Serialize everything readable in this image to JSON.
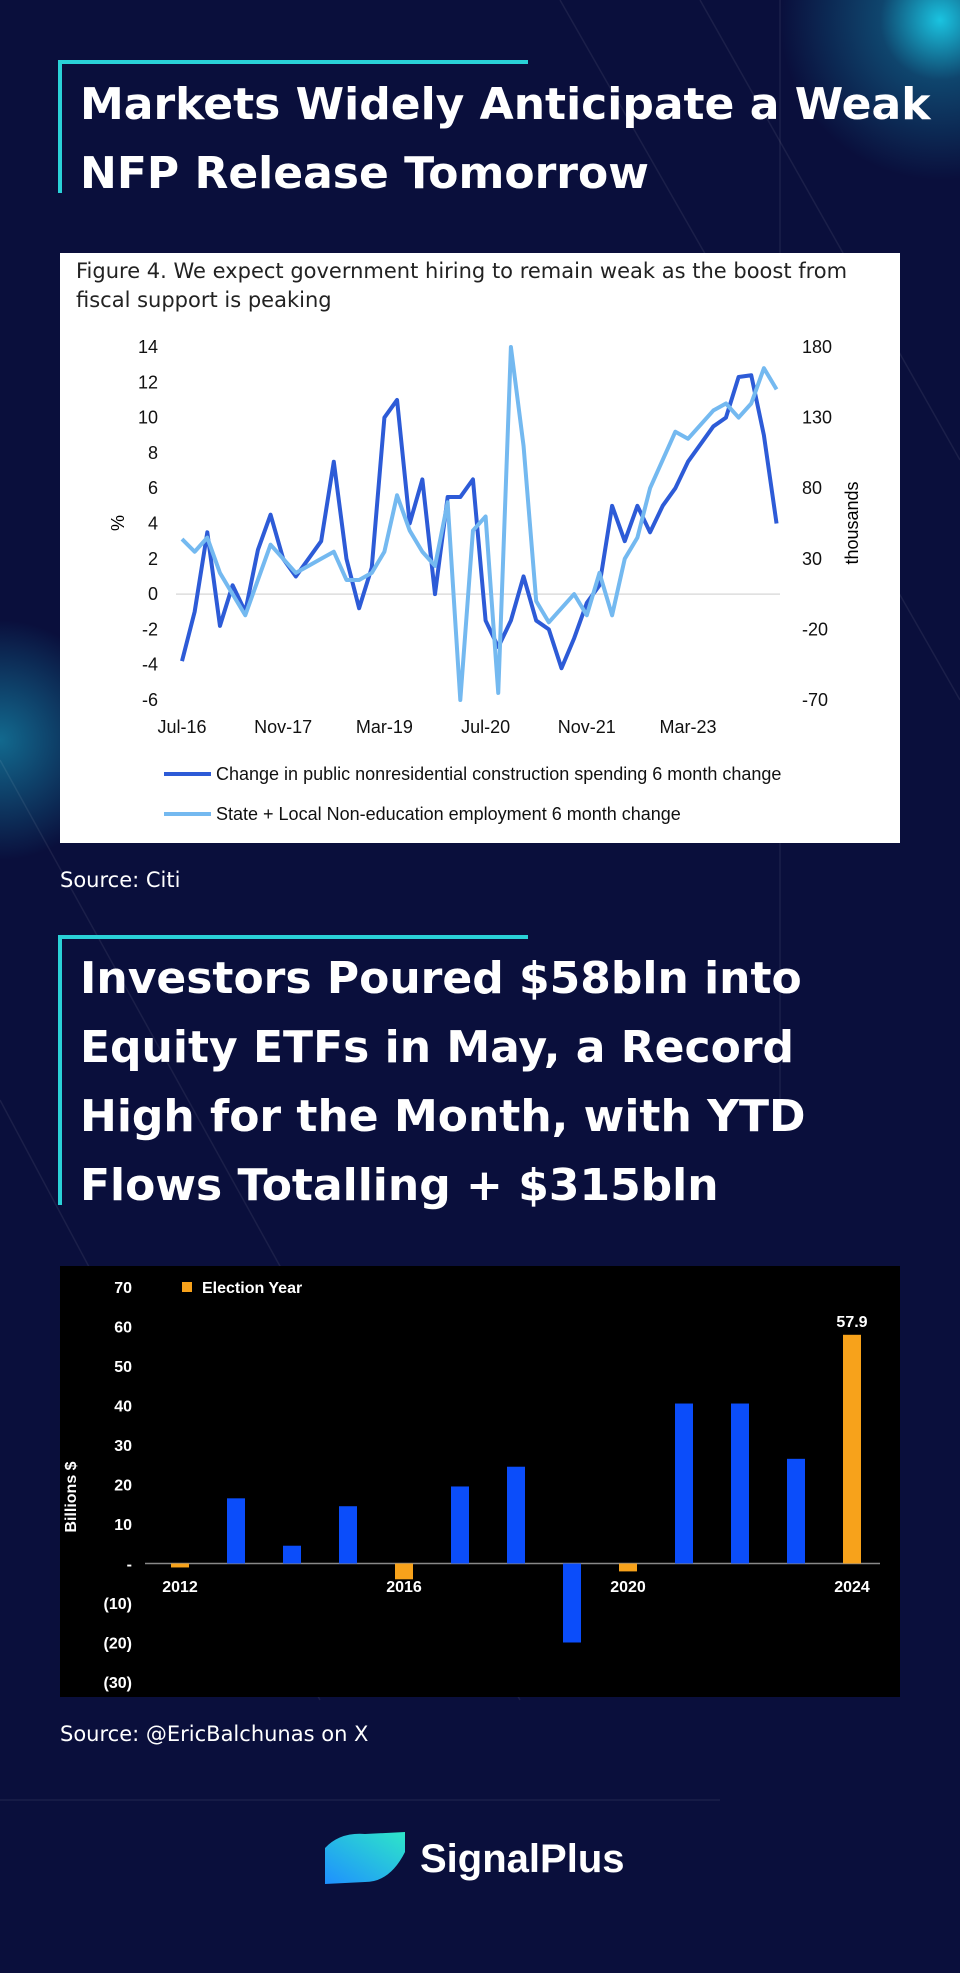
{
  "headings": [
    "Markets Widely Anticipate a Weak NFP Release Tomorrow",
    "Investors Poured $58bln into Equity ETFs in May, a Record High for the Month, with YTD Flows Totalling + $315bln"
  ],
  "sources": [
    "Source: Citi",
    "Source: @EricBalchunas on X"
  ],
  "brand": "SignalPlus",
  "chart_data": [
    {
      "type": "line",
      "title": "Figure 4. We expect government hiring to remain weak as the boost from fiscal support is peaking",
      "y_label": "%",
      "y2_label": "thousands",
      "categories": [
        "Jul-16",
        null,
        null,
        null,
        null,
        null,
        null,
        null,
        "Nov-17",
        null,
        null,
        null,
        null,
        null,
        null,
        null,
        "Mar-19",
        null,
        null,
        null,
        null,
        null,
        null,
        null,
        "Jul-20",
        null,
        null,
        null,
        null,
        null,
        null,
        null,
        "Nov-21",
        null,
        null,
        null,
        null,
        null,
        null,
        null,
        "Mar-23",
        null,
        null,
        null,
        null,
        null,
        null,
        null
      ],
      "ylim": [
        -6,
        14
      ],
      "yticks": [
        14,
        12,
        10,
        8,
        6,
        4,
        2,
        0,
        -2,
        -4,
        -6
      ],
      "y2lim": [
        -70,
        180
      ],
      "y2ticks": [
        180,
        130,
        80,
        30,
        -20,
        -70
      ],
      "series": [
        {
          "name": "Change in public nonresidential construction spending 6 month change",
          "color": "#2d5bd7",
          "values": [
            -3.8,
            -1,
            3.5,
            -1.8,
            0.5,
            -1,
            2.5,
            4.5,
            2,
            1,
            2,
            3,
            7.5,
            2,
            -0.8,
            1.5,
            10,
            11,
            4,
            6.5,
            0,
            5.5,
            5.5,
            6.5,
            -1.5,
            -3,
            -1.5,
            1,
            -1.5,
            -2,
            -4.2,
            -2.5,
            -0.5,
            0.5,
            5,
            3,
            5,
            3.5,
            5,
            6,
            7.5,
            8.5,
            9.5,
            10,
            12.3,
            12.4,
            9,
            4
          ]
        },
        {
          "name": "State + Local Non-education employment 6 month change",
          "color": "#74b9f0",
          "axis": "y2",
          "values": [
            44,
            35,
            45,
            20,
            5,
            -10,
            15,
            40,
            30,
            20,
            25,
            30,
            35,
            15,
            15,
            20,
            35,
            75,
            50,
            35,
            25,
            70,
            -70,
            50,
            60,
            -65,
            180,
            110,
            0,
            -15,
            -5,
            5,
            -10,
            20,
            -10,
            30,
            45,
            80,
            100,
            120,
            115,
            125,
            135,
            140,
            130,
            140,
            165,
            150
          ]
        }
      ]
    },
    {
      "type": "bar",
      "y_label": "Billions $",
      "categories": [
        "2012",
        null,
        null,
        null,
        "2016",
        null,
        null,
        null,
        "2020",
        null,
        null,
        null,
        "2024"
      ],
      "values": [
        -1,
        16.5,
        4.5,
        14.5,
        -4,
        19.5,
        24.5,
        -20,
        -2,
        40.5,
        40.5,
        26.5,
        57.9
      ],
      "colors": [
        "#f7a21b",
        "#0b4dfa",
        "#0b4dfa",
        "#0b4dfa",
        "#f7a21b",
        "#0b4dfa",
        "#0b4dfa",
        "#0b4dfa",
        "#f7a21b",
        "#0b4dfa",
        "#0b4dfa",
        "#0b4dfa",
        "#f7a21b"
      ],
      "value_label_index": 12,
      "legend": {
        "label": "Election Year",
        "color": "#f7a21b"
      },
      "ylim": [
        -30,
        70
      ],
      "yticks": [
        70,
        60,
        50,
        40,
        30,
        20,
        10,
        {
          "value": 0,
          "label": "-"
        },
        {
          "value": -10,
          "label": "(10)"
        },
        {
          "value": -20,
          "label": "(20)"
        },
        {
          "value": -30,
          "label": "(30)"
        }
      ]
    }
  ]
}
